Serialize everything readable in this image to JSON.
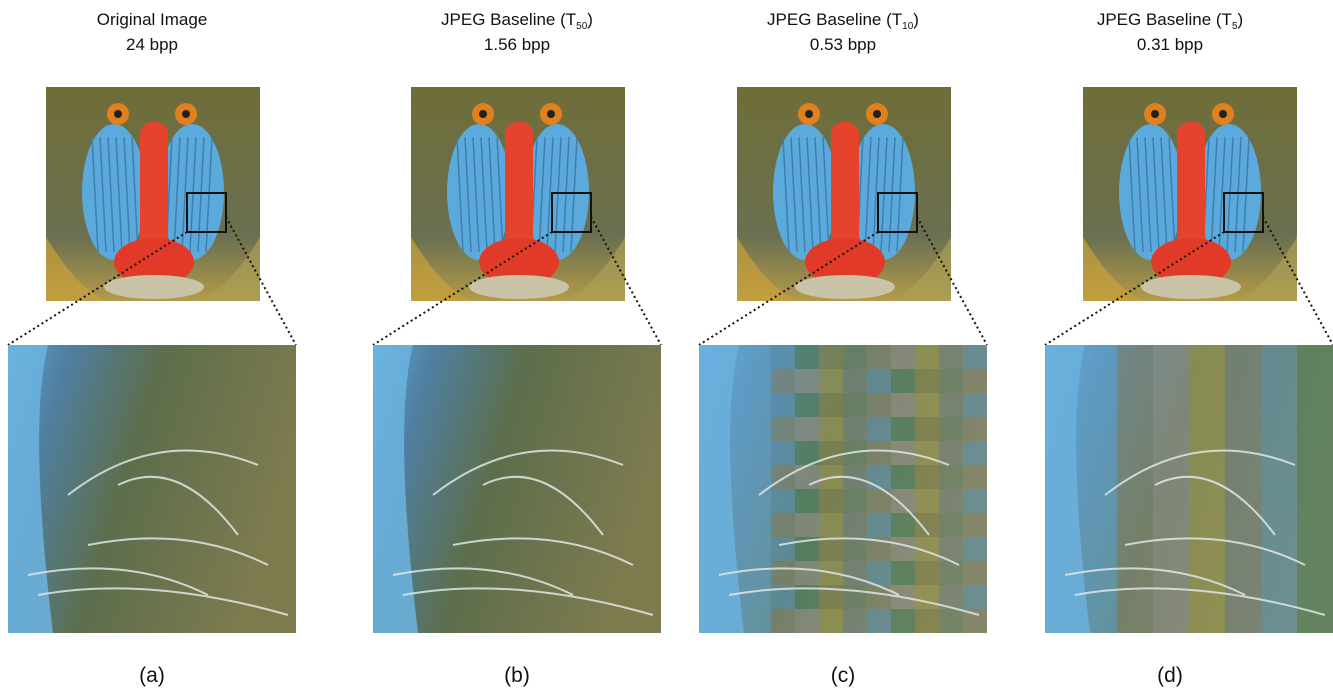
{
  "panels": [
    {
      "title": "Original Image",
      "bpp": "24 bpp",
      "caption": "(a)"
    },
    {
      "title": "JPEG Baseline (T",
      "subscript": "50",
      "title_end": ")",
      "bpp": "1.56 bpp",
      "caption": "(b)"
    },
    {
      "title": "JPEG Baseline (T",
      "subscript": "10",
      "title_end": ")",
      "bpp": "0.53 bpp",
      "caption": "(c)"
    },
    {
      "title": "JPEG Baseline (T",
      "subscript": "5",
      "title_end": ")",
      "bpp": "0.31 bpp",
      "caption": "(d)"
    }
  ]
}
